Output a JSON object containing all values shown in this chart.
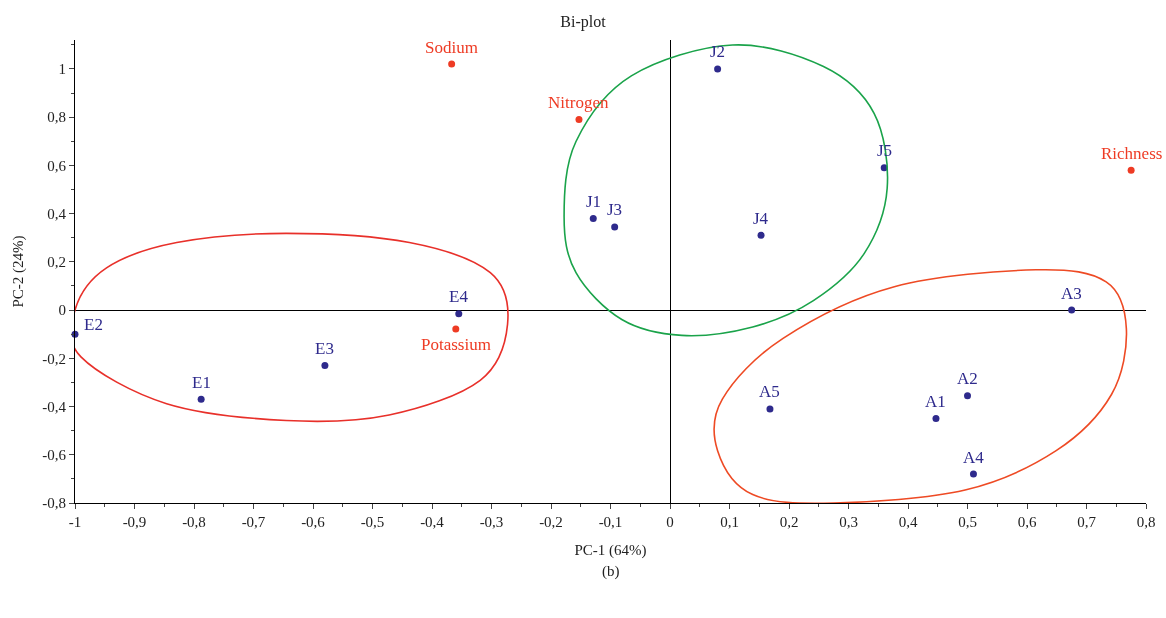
{
  "chart_data": {
    "type": "scatter",
    "title": "Bi-plot",
    "xlabel": "PC-1 (64%)",
    "ylabel": "PC-2 (24%)",
    "series": [
      {
        "marker": "circle",
        "color": "#2e2a8c",
        "x": [
          -1.0,
          -0.788,
          -0.58,
          -0.355,
          0.675,
          0.08,
          0.36,
          0.153,
          -0.129,
          -0.093,
          0.168,
          0.447,
          0.5,
          0.51
        ],
        "values": [
          -0.1,
          -0.37,
          -0.23,
          -0.015,
          0.0,
          1.0,
          0.59,
          0.31,
          0.38,
          0.345,
          -0.41,
          -0.45,
          -0.355,
          -0.68
        ]
      },
      {
        "marker": "circle",
        "color": "#ee3b24",
        "x": [
          -0.367,
          -0.153,
          0.775,
          -0.36
        ],
        "values": [
          1.02,
          0.79,
          0.58,
          -0.078
        ]
      }
    ],
    "annotations": [
      {
        "text": "E2",
        "x": -1.0,
        "y": -0.1
      },
      {
        "text": "E1",
        "x": -0.788,
        "y": -0.37
      },
      {
        "text": "E3",
        "x": -0.58,
        "y": -0.23
      },
      {
        "text": "E4",
        "x": -0.355,
        "y": -0.015
      },
      {
        "text": "A3",
        "x": 0.675,
        "y": 0.0
      },
      {
        "text": "J2",
        "x": 0.08,
        "y": 1.0
      },
      {
        "text": "J5",
        "x": 0.36,
        "y": 0.59
      },
      {
        "text": "J4",
        "x": 0.153,
        "y": 0.31
      },
      {
        "text": "J1",
        "x": -0.129,
        "y": 0.38
      },
      {
        "text": "J3",
        "x": -0.093,
        "y": 0.345
      },
      {
        "text": "A5",
        "x": 0.168,
        "y": -0.41
      },
      {
        "text": "A1",
        "x": 0.447,
        "y": -0.45
      },
      {
        "text": "A2",
        "x": 0.5,
        "y": -0.355
      },
      {
        "text": "A4",
        "x": 0.51,
        "y": -0.68
      },
      {
        "text": "Sodium",
        "x": -0.367,
        "y": 1.02
      },
      {
        "text": "Nitrogen",
        "x": -0.153,
        "y": 0.79
      },
      {
        "text": "Richness",
        "x": 0.775,
        "y": 0.58
      },
      {
        "text": "Potassium",
        "x": -0.36,
        "y": -0.078
      },
      "(b)"
    ],
    "xlim": [
      -1,
      0.8
    ],
    "ylim": [
      -0.8,
      1.12
    ],
    "xticks": [
      -1,
      {
        "value": -0.9,
        "label": "-0,9"
      },
      {
        "value": -0.8,
        "label": "-0,8"
      },
      {
        "value": -0.7,
        "label": "-0,7"
      },
      {
        "value": -0.6,
        "label": "-0,6"
      },
      {
        "value": -0.5,
        "label": "-0,5"
      },
      {
        "value": -0.4,
        "label": "-0,4"
      },
      {
        "value": -0.3,
        "label": "-0,3"
      },
      {
        "value": -0.2,
        "label": "-0,2"
      },
      {
        "value": -0.1,
        "label": "-0,1"
      },
      0,
      {
        "value": 0.1,
        "label": "0,1"
      },
      {
        "value": 0.2,
        "label": "0,2"
      },
      {
        "value": 0.3,
        "label": "0,3"
      },
      {
        "value": 0.4,
        "label": "0,4"
      },
      {
        "value": 0.5,
        "label": "0,5"
      },
      {
        "value": 0.6,
        "label": "0,6"
      },
      {
        "value": 0.7,
        "label": "0,7"
      },
      {
        "value": 0.8,
        "label": "0,8"
      }
    ],
    "yticks": [
      {
        "value": -0.8,
        "label": "-0,8"
      },
      {
        "value": -0.6,
        "label": "-0,6"
      },
      {
        "value": -0.4,
        "label": "-0,4"
      },
      {
        "value": -0.2,
        "label": "-0,2"
      },
      0,
      {
        "value": 0.2,
        "label": "0,2"
      },
      {
        "value": 0.4,
        "label": "0,4"
      },
      {
        "value": 0.6,
        "label": "0,6"
      },
      {
        "value": 0.8,
        "label": "0,8"
      },
      1
    ],
    "tick_labels": "xy"
  }
}
